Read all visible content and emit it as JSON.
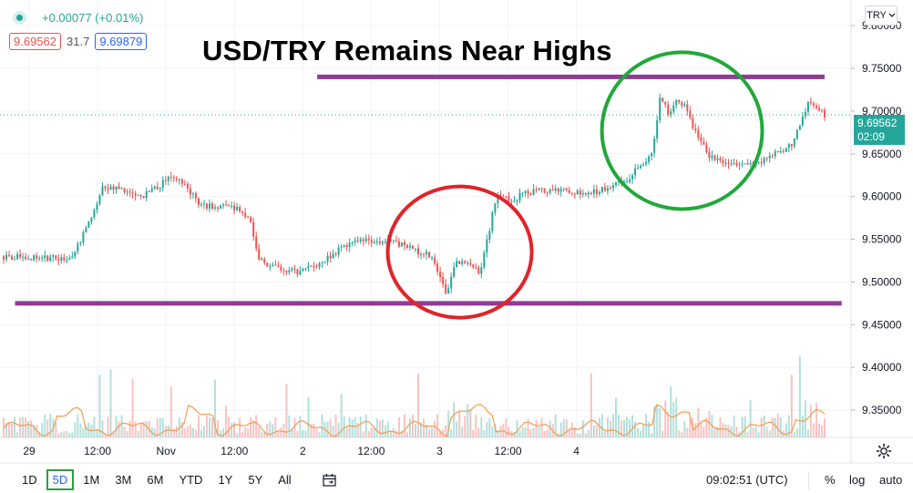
{
  "header": {
    "change_abs": "+0.00077",
    "change_pct": "(+0.01%)",
    "bid": "9.69562",
    "spread": "31.7",
    "ask": "9.69879",
    "currency": "TRY"
  },
  "title": "USD/TRY Remains Near Highs",
  "price_tag": {
    "price": "9.69562",
    "countdown": "02:09"
  },
  "toolbar": {
    "ranges": [
      "1D",
      "5D",
      "1M",
      "3M",
      "6M",
      "YTD",
      "1Y",
      "5Y",
      "All"
    ],
    "active_range": "5D",
    "clock": "09:02:51 (UTC)",
    "percent": "%",
    "log": "log",
    "auto": "auto"
  },
  "colors": {
    "up": "#26a69a",
    "down": "#ef5350",
    "purple_lines": "#8e3c96",
    "red_circle": "#e0242a",
    "green_circle": "#21a83a",
    "volume_ma": "#f29c4b",
    "price_tag_bg": "#26a69a"
  },
  "chart_data": {
    "type": "line",
    "title": "USD/TRY Remains Near Highs",
    "y_axis": {
      "ticks": [
        9.8,
        9.75,
        9.7,
        9.65,
        9.6,
        9.55,
        9.5,
        9.45,
        9.4,
        9.35
      ],
      "tick_labels": [
        "9.80000",
        "9.75000",
        "9.70000",
        "9.65000",
        "9.60000",
        "9.55000",
        "9.50000",
        "9.45000",
        "9.40000",
        "9.35000"
      ],
      "range": [
        9.318,
        9.83
      ],
      "side": "right"
    },
    "x_axis": {
      "tick_labels": [
        "29",
        "12:00",
        "Nov",
        "12:00",
        "2",
        "12:00",
        "3",
        "12:00",
        "4"
      ],
      "range": [
        "Oct 29 00:00",
        "Nov 4 18:00"
      ]
    },
    "price_hours": [
      0,
      8,
      10,
      12,
      14,
      17,
      20,
      22,
      24,
      28,
      30,
      31,
      32,
      34,
      36,
      38,
      41,
      44,
      46,
      48,
      52,
      54,
      55,
      57,
      58,
      58.5,
      60,
      62,
      63,
      64,
      67,
      70,
      72,
      76,
      79,
      80,
      81,
      82,
      83,
      84,
      85,
      86,
      88,
      90,
      92,
      96,
      98,
      99,
      100
    ],
    "price_values": [
      9.53,
      9.527,
      9.56,
      9.61,
      9.61,
      9.6,
      9.62,
      9.615,
      9.59,
      9.587,
      9.575,
      9.53,
      9.52,
      9.515,
      9.51,
      9.52,
      9.538,
      9.55,
      9.548,
      9.545,
      9.53,
      9.485,
      9.525,
      9.52,
      9.51,
      9.53,
      9.6,
      9.595,
      9.602,
      9.605,
      9.608,
      9.605,
      9.605,
      9.62,
      9.65,
      9.72,
      9.695,
      9.715,
      9.705,
      9.68,
      9.665,
      9.645,
      9.64,
      9.638,
      9.64,
      9.66,
      9.71,
      9.702,
      9.696
    ],
    "volume": {
      "bars_per_hour": 3,
      "ma_line": true,
      "pane_height_fraction": 0.2
    },
    "annotations": [
      {
        "type": "hline",
        "value": 9.74,
        "from_hour": 55,
        "to_hour": 144,
        "color": "#8e3c96"
      },
      {
        "type": "hline",
        "value": 9.475,
        "from_hour": 2,
        "to_hour": 147,
        "color": "#8e3c96"
      },
      {
        "type": "circle",
        "center_hour": 80,
        "center_value": 9.535,
        "color": "#e0242a"
      },
      {
        "type": "circle",
        "center_hour": 119,
        "center_value": 9.677,
        "color": "#21a83a"
      }
    ],
    "current_price": 9.69562,
    "legend": "none",
    "grid": true
  }
}
